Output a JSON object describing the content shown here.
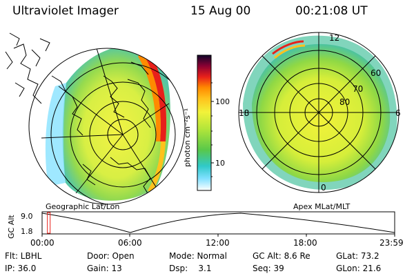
{
  "header": {
    "title": "Ultraviolet Imager",
    "date": "15 Aug 00",
    "time": "00:21:08 UT"
  },
  "left_map": {
    "caption": "Geographic Lat/Lon"
  },
  "right_map": {
    "caption": "Apex MLat/MLT",
    "mlt_labels": [
      "12",
      "18",
      "6",
      "0"
    ],
    "mlat_labels": [
      "60",
      "70",
      "80"
    ]
  },
  "colorbar": {
    "unit_label": "photon cm⁻²s⁻¹",
    "ticks": [
      "100",
      "10"
    ]
  },
  "timeline": {
    "ylabel": "GC Alt",
    "yticks": [
      "9.0",
      "1.8"
    ],
    "xticks": [
      "00:00",
      "06:00",
      "12:00",
      "18:00",
      "23:59"
    ],
    "marker_time_frac": 0.015,
    "orbit_alt_re": [
      {
        "t": "00:00",
        "alt": 9.0
      },
      {
        "t": "06:00",
        "alt": 1.8
      },
      {
        "t": "13:30",
        "alt": 9.0
      },
      {
        "t": "23:59",
        "alt": 1.8
      }
    ]
  },
  "info": {
    "row1": {
      "flt": "Flt: LBHL",
      "door": "Door: Open",
      "mode": "Mode: Normal",
      "gcalt": "GC Alt: 8.6 Re",
      "glat": "GLat: 73.2"
    },
    "row2": {
      "ip": "IP: 36.0",
      "gain": "Gain: 13",
      "dsp": "Dsp:    3.1",
      "seq": "Seq: 39",
      "glon": "GLon: 21.6"
    }
  },
  "colors": {
    "scale": [
      "#ffffff",
      "#7fe0ff",
      "#30c9c9",
      "#59c84a",
      "#b0e53a",
      "#f2f23a",
      "#ffc21c",
      "#ff8a00",
      "#e8201a",
      "#8b0033",
      "#10062a"
    ]
  }
}
